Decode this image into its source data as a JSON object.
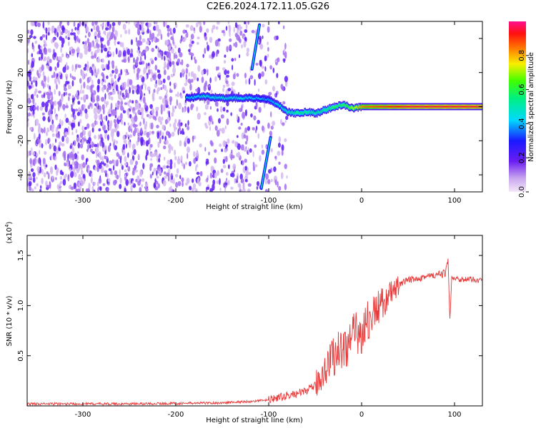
{
  "title": "C2E6.2024.172.11.05.G26",
  "chart_data": [
    {
      "type": "heatmap",
      "xlabel": "Height of straight line (km)",
      "ylabel": "Frequency (Hz)",
      "xlim": [
        -360,
        130
      ],
      "ylim": [
        -50,
        50
      ],
      "xticks": [
        -300,
        -200,
        -100,
        0,
        100
      ],
      "yticks": [
        40,
        20,
        0,
        -20,
        -40
      ],
      "colorbar": {
        "label": "Normalized spectral amplitude",
        "range": [
          0,
          1
        ],
        "ticks": [
          "0.0",
          "0.2",
          "0.4",
          "0.6",
          "0.8"
        ],
        "colormap": "rainbow (purple-blue-cyan-green-yellow-red-magenta)"
      },
      "ridge": {
        "description": "main signal track",
        "x": [
          -190,
          -170,
          -150,
          -130,
          -110,
          -100,
          -90,
          -80,
          -70,
          -60,
          -50,
          -40,
          -30,
          -20,
          -10,
          0,
          20,
          50,
          90,
          130
        ],
        "y": [
          5,
          6,
          5,
          5,
          5,
          4,
          1,
          -3,
          -4,
          -3,
          -4,
          -2,
          0,
          1,
          -1,
          0,
          0,
          0,
          0,
          0
        ],
        "amplitude": [
          0.4,
          0.45,
          0.45,
          0.45,
          0.4,
          0.4,
          0.45,
          0.5,
          0.55,
          0.55,
          0.5,
          0.55,
          0.6,
          0.6,
          0.7,
          0.85,
          0.9,
          0.95,
          0.95,
          0.95
        ]
      },
      "streaks": [
        {
          "x": [
            -118,
            -110
          ],
          "y": [
            22,
            48
          ]
        },
        {
          "x": [
            -108,
            -98
          ],
          "y": [
            -48,
            -18
          ]
        }
      ]
    },
    {
      "type": "line",
      "xlabel": "Height of straight line (km)",
      "ylabel": "SNR (10 * v/v)",
      "multiplier_label": "(x10",
      "multiplier_exp": "4",
      "multiplier_close": ")",
      "xlim": [
        -360,
        130
      ],
      "ylim": [
        0,
        1.7
      ],
      "xticks": [
        -300,
        -200,
        -100,
        0,
        100
      ],
      "yticks": [
        "0.5",
        "1.0",
        "1.5"
      ],
      "ytick_values": [
        0.5,
        1.0,
        1.5
      ],
      "series": [
        {
          "color": "#e83a3a",
          "x": [
            -360,
            -300,
            -250,
            -200,
            -150,
            -130,
            -110,
            -100,
            -90,
            -80,
            -70,
            -60,
            -50,
            -45,
            -40,
            -35,
            -30,
            -25,
            -20,
            -15,
            -10,
            -5,
            0,
            5,
            10,
            15,
            20,
            25,
            30,
            35,
            40,
            50,
            60,
            70,
            80,
            85,
            90,
            93,
            95,
            97,
            100,
            110,
            120,
            130
          ],
          "y": [
            0.02,
            0.02,
            0.02,
            0.025,
            0.03,
            0.04,
            0.05,
            0.06,
            0.08,
            0.1,
            0.12,
            0.15,
            0.2,
            0.28,
            0.35,
            0.45,
            0.5,
            0.55,
            0.58,
            0.62,
            0.66,
            0.7,
            0.75,
            0.82,
            0.88,
            0.95,
            1.0,
            1.05,
            1.1,
            1.15,
            1.2,
            1.25,
            1.28,
            1.29,
            1.3,
            1.31,
            1.32,
            1.45,
            0.85,
            1.3,
            1.27,
            1.26,
            1.26,
            1.25
          ]
        }
      ]
    }
  ]
}
